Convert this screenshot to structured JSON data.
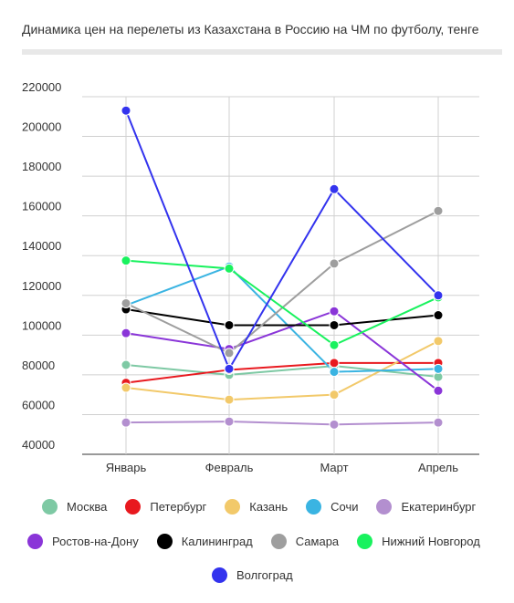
{
  "chart_data": {
    "type": "line",
    "title": "Динамика цен на перелеты из Казахстана в Россию на ЧМ по футболу, тенге",
    "xlabel": "",
    "ylabel": "",
    "categories": [
      "Январь",
      "Февраль",
      "Март",
      "Апрель"
    ],
    "ylim": [
      40000,
      220000
    ],
    "yticks": [
      40000,
      60000,
      80000,
      100000,
      120000,
      140000,
      160000,
      180000,
      200000,
      220000
    ],
    "grid": true,
    "legend": "bottom",
    "series": [
      {
        "name": "Москва",
        "color": "#7ec9a4",
        "values": [
          85000,
          80000,
          84500,
          79000
        ]
      },
      {
        "name": "Петербург",
        "color": "#e8191f",
        "values": [
          76000,
          82500,
          86000,
          86000
        ]
      },
      {
        "name": "Казань",
        "color": "#f2c96a",
        "values": [
          73500,
          67500,
          70000,
          97000
        ]
      },
      {
        "name": "Сочи",
        "color": "#3ab4e2",
        "values": [
          115000,
          134500,
          81500,
          83000
        ]
      },
      {
        "name": "Екатеринбург",
        "color": "#b38fcf",
        "values": [
          56000,
          56500,
          55000,
          56000
        ]
      },
      {
        "name": "Ростов-на-Дону",
        "color": "#8a35d8",
        "values": [
          101000,
          93000,
          112000,
          72000
        ]
      },
      {
        "name": "Калининград",
        "color": "#000000",
        "values": [
          113000,
          105000,
          105000,
          110000
        ]
      },
      {
        "name": "Самара",
        "color": "#9e9e9e",
        "values": [
          116000,
          91000,
          136000,
          162500
        ]
      },
      {
        "name": "Нижний Новгород",
        "color": "#19f25e",
        "values": [
          137500,
          133500,
          95000,
          119000
        ]
      },
      {
        "name": "Волгоград",
        "color": "#3333ee",
        "values": [
          213000,
          83000,
          173500,
          120000
        ]
      }
    ]
  }
}
